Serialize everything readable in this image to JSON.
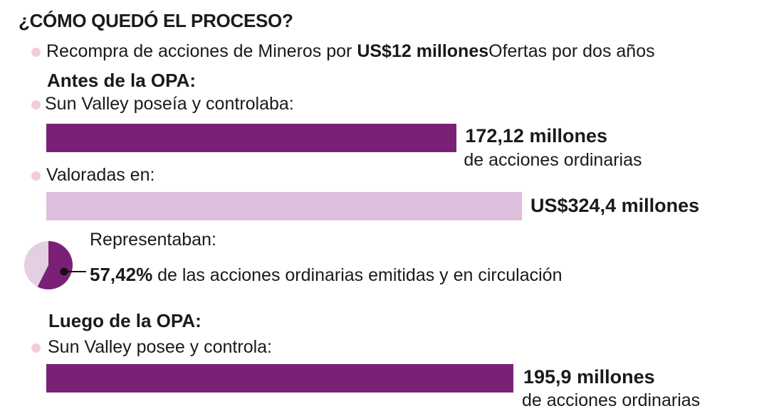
{
  "header": {
    "title": "¿CÓMO QUEDÓ EL PROCESO?",
    "subtitle_prefix": "Recompra de acciones de Mineros por ",
    "subtitle_bold": "US$12 millones",
    "subtitle_suffix": "Ofertas por dos años"
  },
  "before": {
    "heading": "Antes de la OPA:",
    "owned_label": "Sun Valley poseía y controlaba:",
    "shares_value": "172,12 millones",
    "shares_unit": "de acciones ordinarias",
    "valued_label": "Valoradas en:",
    "valued_value": "US$324,4 millones",
    "represent_label": "Representaban:",
    "pct_value": "57,42%",
    "pct_text": " de las acciones ordinarias emitidas y en circulación"
  },
  "after": {
    "heading": "Luego de la OPA:",
    "owned_label": "Sun Valley posee y controla:",
    "shares_value": "195,9 millones",
    "shares_unit": "de acciones ordinarias"
  },
  "colors": {
    "dark_purple": "#7a2177",
    "light_purple": "#dcbfdd",
    "bullet_pink": "#f2cfd6",
    "pie_light": "#e3cfe3"
  },
  "chart_data": {
    "type": "bar",
    "orientation": "horizontal",
    "bars": [
      {
        "label": "Sun Valley poseía y controlaba",
        "value": 172.12,
        "unit": "millones de acciones ordinarias"
      },
      {
        "label": "Valoradas en",
        "value": 324.4,
        "unit": "US$ millones"
      },
      {
        "label": "Sun Valley posee y controla",
        "value": 195.9,
        "unit": "millones de acciones ordinarias"
      }
    ],
    "pie": {
      "value_percent": 57.42
    }
  }
}
